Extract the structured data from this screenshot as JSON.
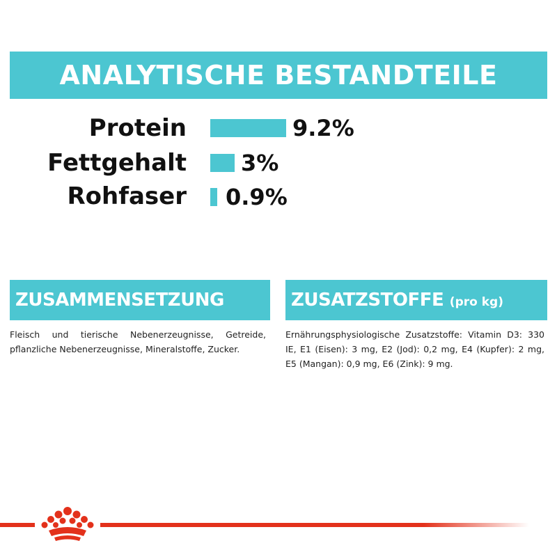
{
  "header": {
    "title": "ANALYTISCHE BESTANDTEILE"
  },
  "nutrients": [
    {
      "label": "Protein",
      "value": "9.2%",
      "percent": 9.2
    },
    {
      "label": "Fettgehalt",
      "value": "3%",
      "percent": 3
    },
    {
      "label": "Rohfaser",
      "value": "0.9%",
      "percent": 0.9
    }
  ],
  "composition": {
    "title": "ZUSAMMENSETZUNG",
    "text": "Fleisch und tierische Nebenerzeugnisse, Getreide, pflanzliche Nebenerzeugnisse, Mineralstoffe, Zucker."
  },
  "additives": {
    "title": "ZUSATZSTOFFE",
    "title_suffix": "(pro kg)",
    "text": "Ernährungsphysiologische Zusatzstoffe: Vitamin D3: 330 IE, E1 (Eisen): 3 mg, E2 (Jod): 0,2 mg, E4 (Kupfer): 2 mg, E5 (Mangan): 0,9 mg, E6 (Zink): 9 mg."
  },
  "colors": {
    "accent": "#4cc6d1",
    "brand_red": "#e3311b",
    "text": "#111111"
  },
  "footer": {
    "logo_icon": "royal-crown-icon"
  }
}
